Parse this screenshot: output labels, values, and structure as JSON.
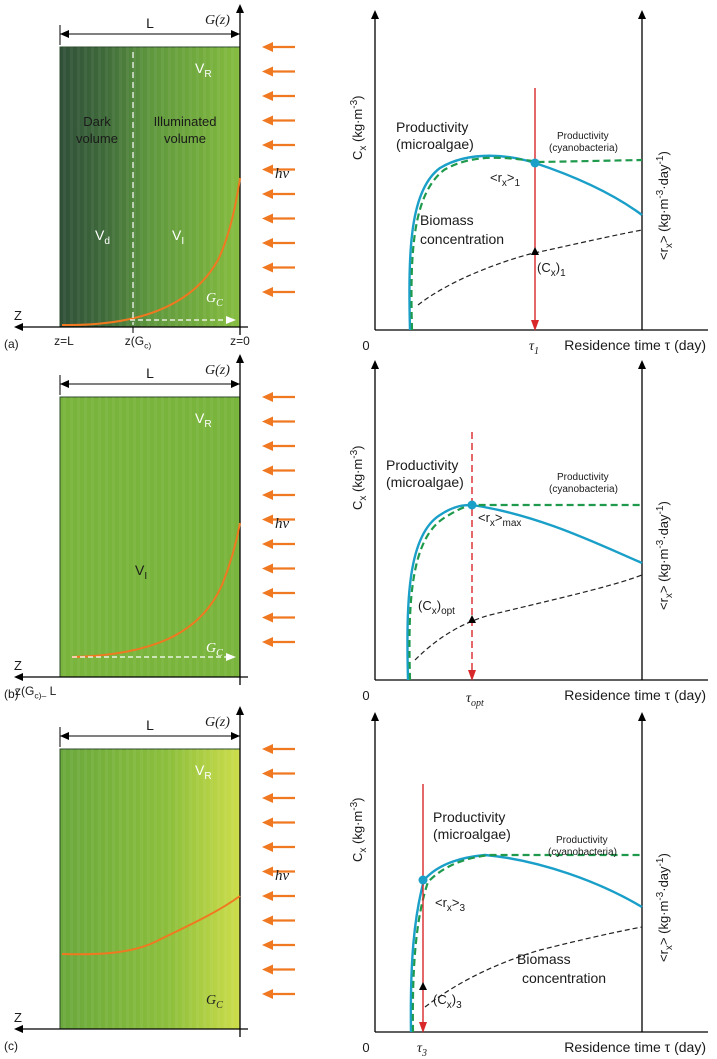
{
  "colors": {
    "reactor_dark": "#34583a",
    "reactor_mid": "#6aa53c",
    "reactor_light": "#cfdc4c",
    "reactor_uniform": "#79b43c",
    "light_arrow": "#f07820",
    "g_curve": "#f07820",
    "productivity_algae": "#1a9fc8",
    "productivity_cyano": "#1f9a4c",
    "residence_line": "#d8282a",
    "biomass": "#222222",
    "axis": "#000000"
  },
  "icons": {
    "light_arrow": "arrow-left-icon",
    "axis_arrow": "arrow-head-icon"
  },
  "panels": [
    {
      "tag": "(a)",
      "width_label": "L",
      "g_label": "G(z)",
      "z_label": "Z",
      "vr_label": "V_R",
      "hv_label": "hν",
      "gc_label": "G_C",
      "dark_volume_label": "Dark volume",
      "illuminated_volume_label": "Illuminated volume",
      "vd_label": "V_d",
      "vi_label": "V_I",
      "z_left_tick": "z=L",
      "z_mid_tick": "z(G_c)",
      "z_right_tick": "z=0",
      "bottom_tick": "",
      "chart": {
        "ylabel": "C_x (kg·m⁻³)",
        "y2label": "<r_x> (kg·m⁻³·day⁻¹)",
        "xlabel": "Residence time τ (day)",
        "origin": "0",
        "productivity_microalgae": "Productivity (microalgae)",
        "productivity_cyanobacteria": "Productivity (cyanobacteria)",
        "biomass_label": "Biomass concentration",
        "point_rx": "<r_x>_1",
        "point_cx": "(C_x)_1",
        "tau_label": "τ_1"
      }
    },
    {
      "tag": "(b)",
      "width_label": "L",
      "g_label": "G(z)",
      "z_label": "Z",
      "vr_label": "V_R",
      "hv_label": "hν",
      "gc_label": "G_C",
      "vi_label": "V_I",
      "bottom_tick": "z(G_c)– L",
      "chart": {
        "ylabel": "C_x (kg·m⁻³)",
        "y2label": "<r_x> (kg·m⁻³·day⁻¹)",
        "xlabel": "Residence time τ (day)",
        "origin": "0",
        "productivity_microalgae": "Productivity (microalgae)",
        "productivity_cyanobacteria": "Productivity (cyanobacteria)",
        "point_rx": "<r_x>_max",
        "point_cx": "(C_x)_opt",
        "tau_label": "τ_opt"
      }
    },
    {
      "tag": "(c)",
      "width_label": "L",
      "g_label": "G(z)",
      "z_label": "Z",
      "vr_label": "V_R",
      "hv_label": "hν",
      "gc_label": "G_C",
      "chart": {
        "ylabel": "C_x (kg·m⁻³)",
        "y2label": "<r_x> (kg·m⁻³·day⁻¹)",
        "xlabel": "Residence time τ (day)",
        "origin": "0",
        "productivity_microalgae": "Productivity (microalgae)",
        "productivity_cyanobacteria": "Productivity (cyanobacteria)",
        "biomass_label": "Biomass concentration",
        "point_rx": "<r_x>_3",
        "point_cx": "(C_x)_3",
        "tau_label": "τ_3"
      }
    }
  ]
}
